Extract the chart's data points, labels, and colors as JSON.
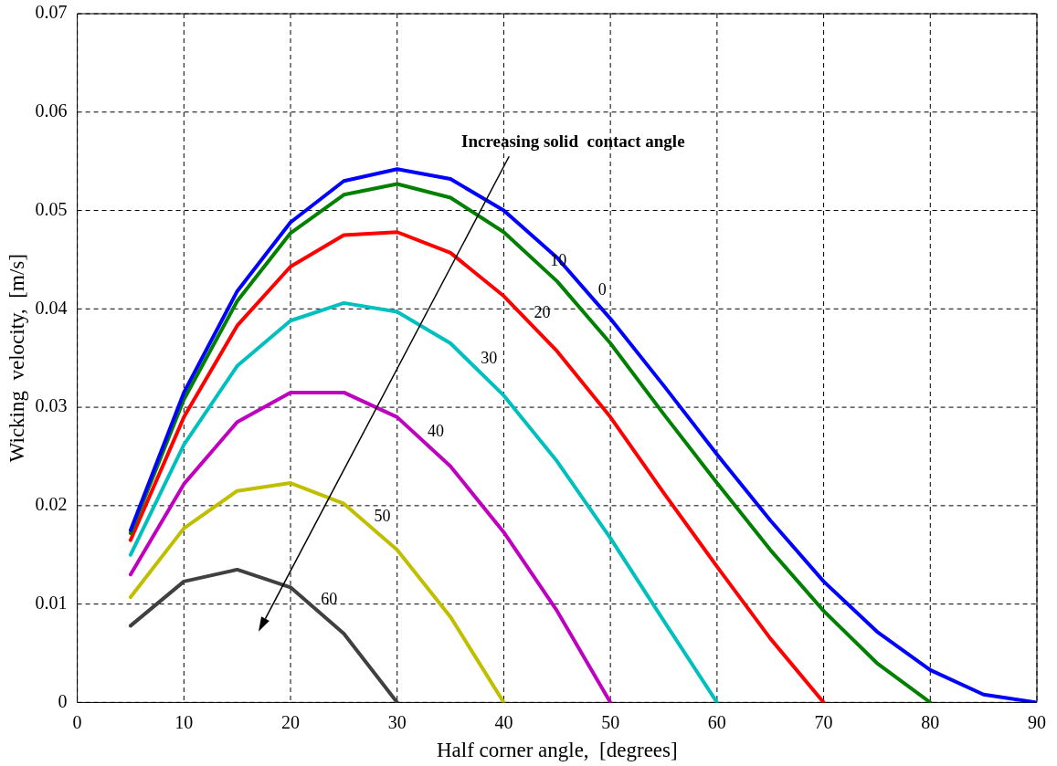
{
  "chart_data": {
    "type": "line",
    "xlabel": "Half corner angle,  [degrees]",
    "ylabel": "Wicking  velocity,  [m/s]",
    "x": [
      5,
      10,
      15,
      20,
      25,
      30,
      35,
      40,
      45,
      50,
      55,
      60,
      65,
      70,
      75,
      80,
      85,
      90
    ],
    "series": [
      {
        "name": "0",
        "color": "#0000ff",
        "values": [
          0.0175,
          0.0315,
          0.0418,
          0.0488,
          0.053,
          0.0542,
          0.0532,
          0.05,
          0.0452,
          0.039,
          0.0322,
          0.0252,
          0.0185,
          0.0123,
          0.0072,
          0.0033,
          0.0008,
          0
        ]
      },
      {
        "name": "10",
        "color": "#008000",
        "values": [
          0.0172,
          0.0308,
          0.0408,
          0.0477,
          0.0516,
          0.0527,
          0.0513,
          0.0478,
          0.0428,
          0.0365,
          0.0293,
          0.0223,
          0.0155,
          0.0093,
          0.004,
          0,
          null,
          null
        ]
      },
      {
        "name": "20",
        "color": "#ff0000",
        "values": [
          0.0165,
          0.029,
          0.0383,
          0.0443,
          0.0475,
          0.0478,
          0.0457,
          0.0413,
          0.0357,
          0.029,
          0.0213,
          0.0138,
          0.0065,
          0,
          null,
          null,
          null,
          null
        ]
      },
      {
        "name": "30",
        "color": "#00bfbf",
        "values": [
          0.015,
          0.0262,
          0.0342,
          0.0388,
          0.0406,
          0.0397,
          0.0365,
          0.0312,
          0.0245,
          0.0167,
          0.0083,
          0,
          null,
          null,
          null,
          null,
          null,
          null
        ]
      },
      {
        "name": "40",
        "color": "#bf00bf",
        "values": [
          0.013,
          0.0222,
          0.0285,
          0.0315,
          0.0315,
          0.029,
          0.024,
          0.0173,
          0.0093,
          0,
          null,
          null,
          null,
          null,
          null,
          null,
          null,
          null
        ]
      },
      {
        "name": "50",
        "color": "#bfbf00",
        "values": [
          0.0107,
          0.0177,
          0.0215,
          0.0223,
          0.0202,
          0.0155,
          0.0087,
          0,
          null,
          null,
          null,
          null,
          null,
          null,
          null,
          null,
          null,
          null
        ]
      },
      {
        "name": "60",
        "color": "#404040",
        "values": [
          0.0078,
          0.0123,
          0.0135,
          0.0117,
          0.007,
          0,
          null,
          null,
          null,
          null,
          null,
          null,
          null,
          null,
          null,
          null,
          null,
          null
        ]
      }
    ],
    "xlim": [
      0,
      90
    ],
    "xticks": [
      0,
      10,
      20,
      30,
      40,
      50,
      60,
      70,
      80,
      90
    ],
    "ylim": [
      0,
      0.07
    ],
    "yticks": [
      0,
      0.01,
      0.02,
      0.03,
      0.04,
      0.05,
      0.06,
      0.07
    ],
    "annotations": [
      "Increasing solid  contact angle"
    ],
    "grid": true,
    "legend": false,
    "marker": "none",
    "line_style": "solid"
  }
}
